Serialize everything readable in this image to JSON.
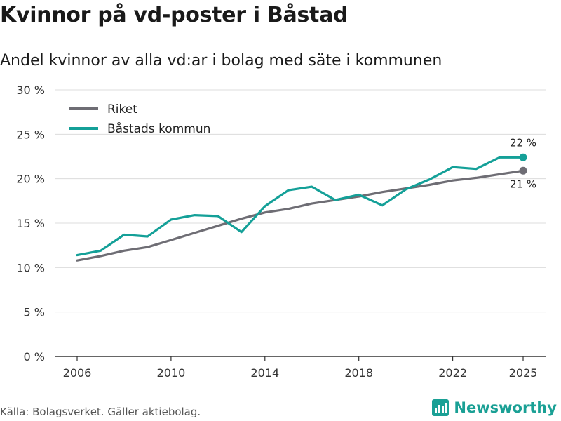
{
  "title": "Kvinnor på vd-poster i Båstad",
  "subtitle": "Andel kvinnor av alla vd:ar i bolag med säte i kommunen",
  "source": "Källa: Bolagsverket. Gäller aktiebolag.",
  "brand": "Newsworthy",
  "chart_data": {
    "type": "line",
    "title": "Kvinnor på vd-poster i Båstad",
    "subtitle": "Andel kvinnor av alla vd:ar i bolag med säte i kommunen",
    "xlabel": "",
    "ylabel": "",
    "x": [
      2006,
      2007,
      2008,
      2009,
      2010,
      2011,
      2012,
      2013,
      2014,
      2015,
      2016,
      2017,
      2018,
      2019,
      2020,
      2021,
      2022,
      2023,
      2024,
      2025
    ],
    "xticks": [
      2006,
      2010,
      2014,
      2018,
      2022,
      2025
    ],
    "xlim": [
      2006,
      2025
    ],
    "ylim": [
      0,
      30
    ],
    "yticks": [
      0,
      5,
      10,
      15,
      20,
      25,
      30
    ],
    "ytick_labels": [
      "0 %",
      "5 %",
      "10 %",
      "15 %",
      "20 %",
      "25 %",
      "30 %"
    ],
    "legend_position": "top-left",
    "grid": true,
    "series": [
      {
        "name": "Riket",
        "color": "#6e6d74",
        "values": [
          10.8,
          11.3,
          11.9,
          12.3,
          13.1,
          13.9,
          14.7,
          15.5,
          16.2,
          16.6,
          17.2,
          17.6,
          18.0,
          18.5,
          18.9,
          19.3,
          19.8,
          20.1,
          20.5,
          20.9
        ],
        "end_label": "21 %"
      },
      {
        "name": "Båstads kommun",
        "color": "#14a098",
        "values": [
          11.4,
          11.9,
          13.7,
          13.5,
          15.4,
          15.9,
          15.8,
          14.0,
          16.9,
          18.7,
          19.1,
          17.6,
          18.2,
          17.0,
          18.8,
          19.9,
          21.3,
          21.1,
          22.4,
          22.4
        ],
        "end_label": "22 %"
      }
    ]
  }
}
